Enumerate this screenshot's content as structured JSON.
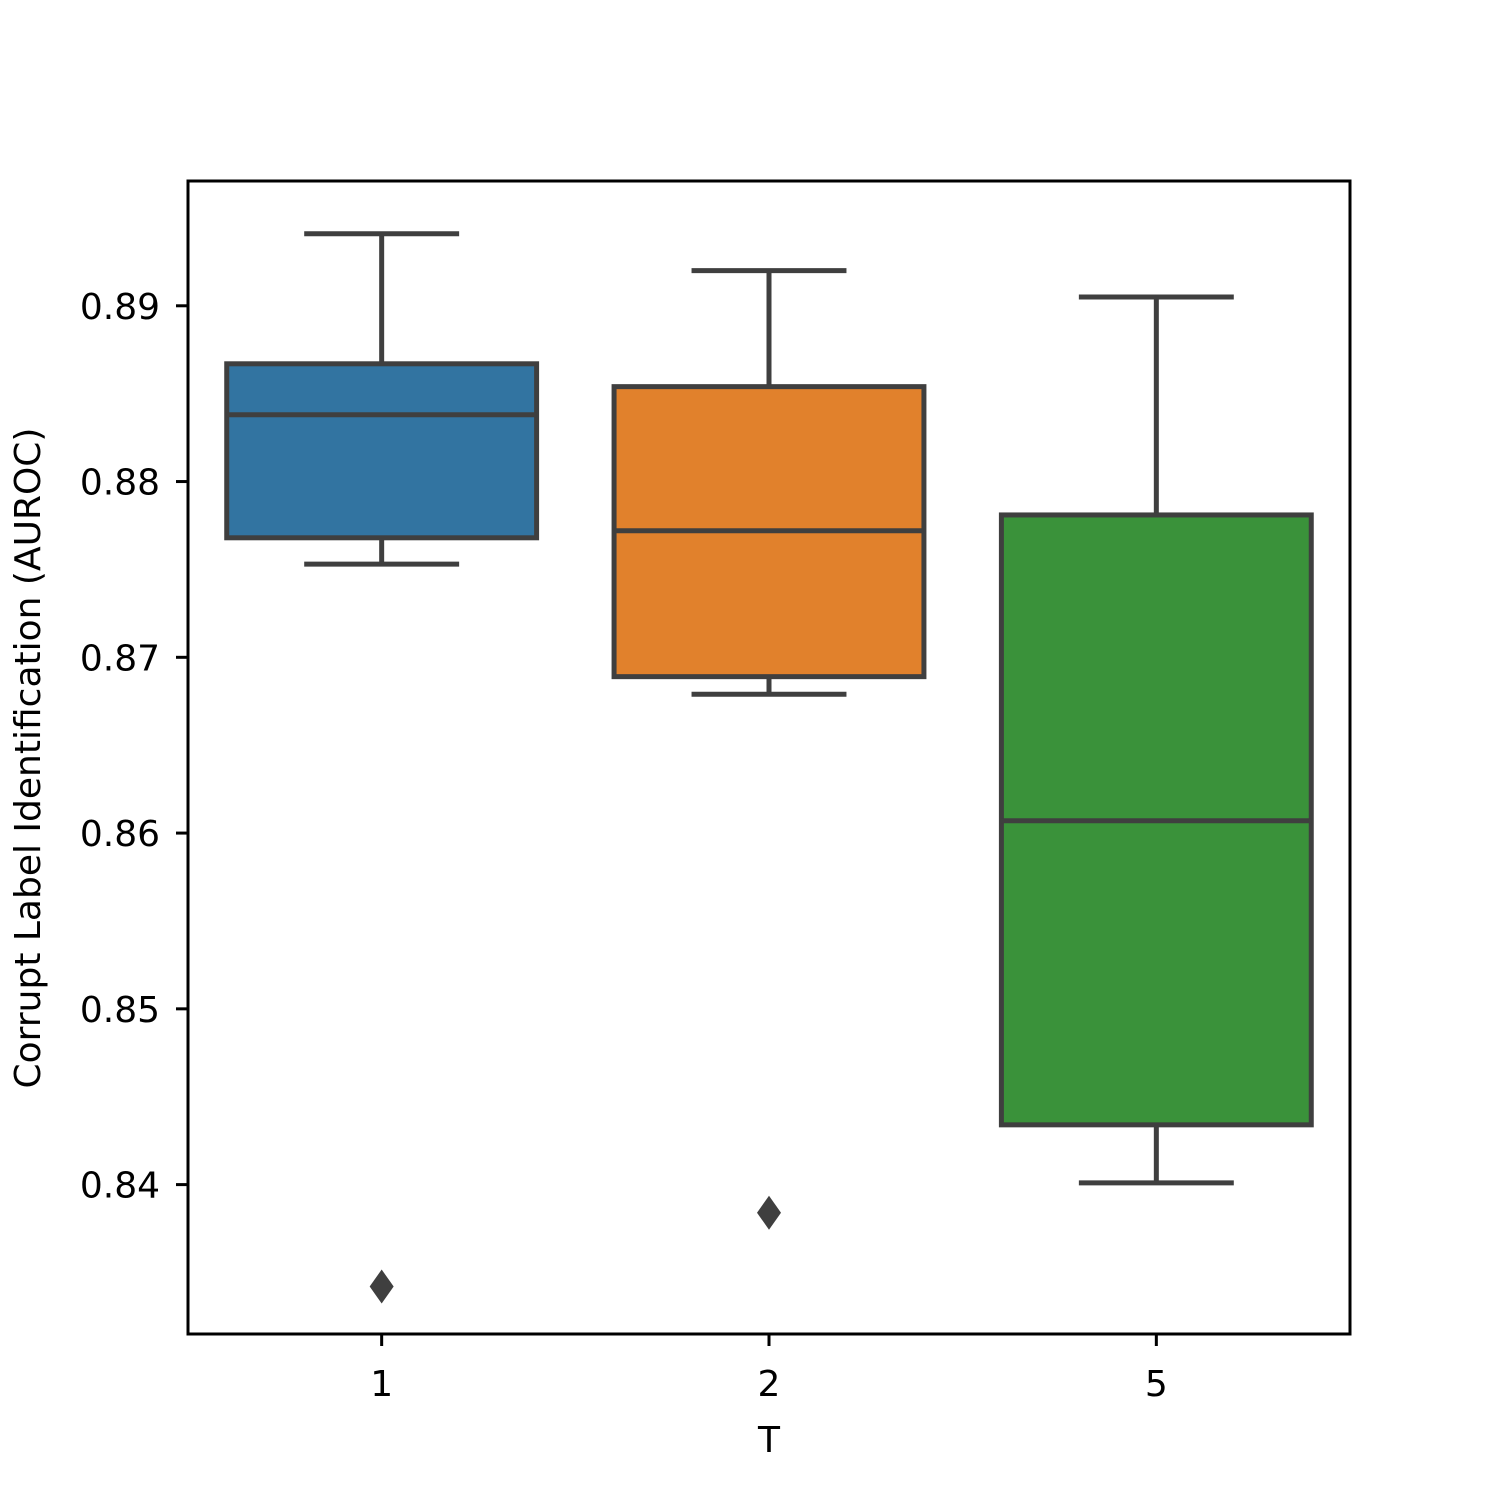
{
  "chart_data": {
    "type": "box",
    "xlabel": "T",
    "ylabel": "Corrupt Label Identification (AUROC)",
    "categories": [
      "1",
      "2",
      "5"
    ],
    "ylim": [
      0.8315,
      0.8971
    ],
    "yticks": [
      0.84,
      0.85,
      0.86,
      0.87,
      0.88,
      0.89
    ],
    "ytick_labels": [
      "0.84",
      "0.85",
      "0.86",
      "0.87",
      "0.88",
      "0.89"
    ],
    "grid": false,
    "legend": "none",
    "boxes": [
      {
        "category": "1",
        "whisker_low": 0.8753,
        "q1": 0.8768,
        "median": 0.8838,
        "q3": 0.8867,
        "whisker_high": 0.8941,
        "outliers": [
          0.8342
        ],
        "color": "#3274a1"
      },
      {
        "category": "2",
        "whisker_low": 0.8679,
        "q1": 0.8689,
        "median": 0.8772,
        "q3": 0.8854,
        "whisker_high": 0.892,
        "outliers": [
          0.8384
        ],
        "color": "#e1812c"
      },
      {
        "category": "5",
        "whisker_low": 0.8401,
        "q1": 0.8434,
        "median": 0.8607,
        "q3": 0.8781,
        "whisker_high": 0.8905,
        "outliers": [],
        "color": "#3a923a"
      }
    ],
    "edge_color": "#3f3f3f"
  }
}
